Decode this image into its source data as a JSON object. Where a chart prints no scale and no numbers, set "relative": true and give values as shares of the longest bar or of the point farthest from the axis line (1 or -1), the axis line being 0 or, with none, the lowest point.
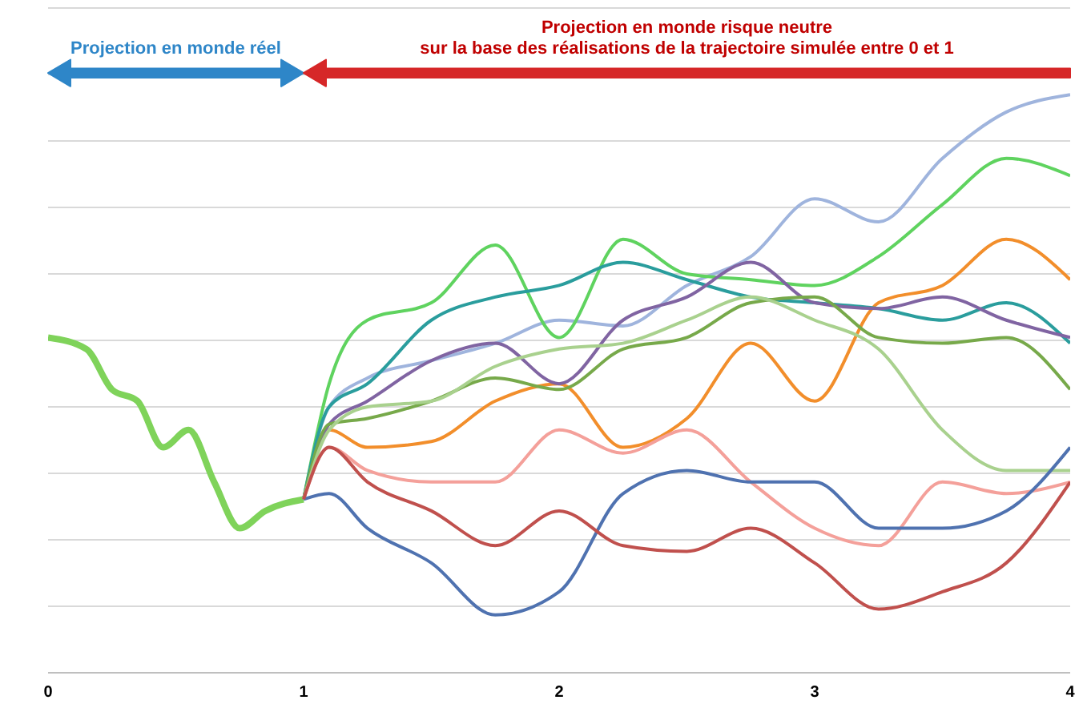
{
  "chart_data": {
    "type": "line",
    "relative": true,
    "xlim": [
      0,
      4
    ],
    "xticks": [
      0,
      1,
      2,
      3,
      4
    ],
    "grid": "y",
    "legend": false,
    "marker": "none",
    "line_style": "solid",
    "annotations": [
      "Projection en monde réel",
      "Projection en monde risque neutre\nsur la base des réalisations de la trajectoire simulée entre 0 et 1"
    ],
    "x": [
      1,
      1.1,
      1.25,
      1.5,
      1.75,
      2,
      2.25,
      2.5,
      2.75,
      3,
      3.25,
      3.5,
      3.75,
      4
    ],
    "series": [
      {
        "color": "#7fd35a",
        "x": [
          0,
          0.15,
          0.25,
          0.35,
          0.45,
          0.55,
          0.65,
          0.75,
          0.85,
          1
        ],
        "values": [
          0.58,
          0.56,
          0.49,
          0.47,
          0.39,
          0.42,
          0.33,
          0.25,
          0.28,
          0.3
        ]
      },
      {
        "color": "#9fb4dd",
        "values": [
          0.3,
          0.46,
          0.51,
          0.54,
          0.57,
          0.61,
          0.6,
          0.67,
          0.72,
          0.82,
          0.78,
          0.89,
          0.97,
          1.0
        ]
      },
      {
        "color": "#5fd35f",
        "values": [
          0.3,
          0.5,
          0.61,
          0.64,
          0.74,
          0.58,
          0.75,
          0.69,
          0.68,
          0.67,
          0.72,
          0.81,
          0.89,
          0.86
        ]
      },
      {
        "color": "#f28e2b",
        "values": [
          0.3,
          0.42,
          0.39,
          0.4,
          0.47,
          0.5,
          0.39,
          0.44,
          0.57,
          0.47,
          0.64,
          0.67,
          0.75,
          0.68
        ]
      },
      {
        "color": "#2a9d9d",
        "values": [
          0.3,
          0.46,
          0.5,
          0.61,
          0.65,
          0.67,
          0.71,
          0.68,
          0.65,
          0.64,
          0.63,
          0.61,
          0.64,
          0.57
        ]
      },
      {
        "color": "#8064a2",
        "values": [
          0.3,
          0.43,
          0.47,
          0.54,
          0.57,
          0.5,
          0.61,
          0.65,
          0.71,
          0.64,
          0.63,
          0.65,
          0.61,
          0.58
        ]
      },
      {
        "color": "#77a94a",
        "values": [
          0.3,
          0.43,
          0.44,
          0.47,
          0.51,
          0.49,
          0.56,
          0.58,
          0.64,
          0.65,
          0.58,
          0.57,
          0.58,
          0.49
        ]
      },
      {
        "color": "#a9d18e",
        "values": [
          0.3,
          0.42,
          0.46,
          0.47,
          0.53,
          0.56,
          0.57,
          0.61,
          0.65,
          0.61,
          0.56,
          0.42,
          0.35,
          0.35
        ]
      },
      {
        "color": "#f4a09a",
        "values": [
          0.3,
          0.39,
          0.35,
          0.33,
          0.33,
          0.42,
          0.38,
          0.42,
          0.33,
          0.25,
          0.22,
          0.33,
          0.31,
          0.33
        ]
      },
      {
        "color": "#4f72b0",
        "values": [
          0.3,
          0.31,
          0.25,
          0.19,
          0.1,
          0.14,
          0.31,
          0.35,
          0.33,
          0.33,
          0.25,
          0.25,
          0.28,
          0.39
        ]
      },
      {
        "color": "#c0504d",
        "values": [
          0.3,
          0.39,
          0.33,
          0.28,
          0.22,
          0.28,
          0.22,
          0.21,
          0.25,
          0.19,
          0.11,
          0.14,
          0.19,
          0.33
        ]
      }
    ]
  }
}
